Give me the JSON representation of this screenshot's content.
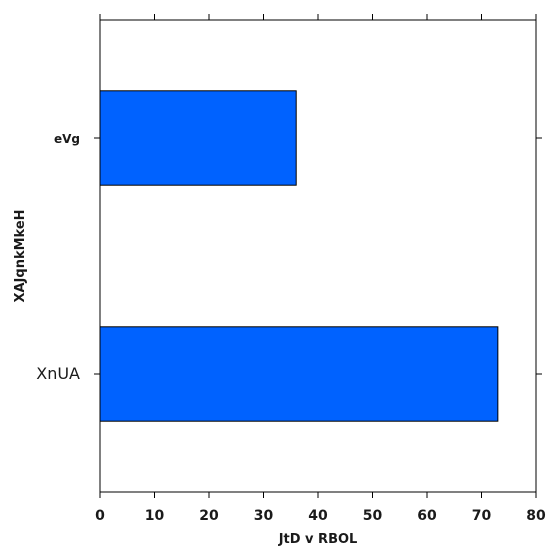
{
  "chart_data": {
    "type": "bar",
    "orientation": "horizontal",
    "categories": [
      "XnUA",
      "eVg"
    ],
    "values": [
      73,
      36
    ],
    "title": "",
    "xlabel": "JtD  v RBOL",
    "ylabel": "XAJqnkMkeH",
    "xlim": [
      0,
      80
    ],
    "xticks": [
      0,
      10,
      20,
      30,
      40,
      50,
      60,
      70,
      80
    ],
    "grid": false,
    "bar_color": "#0062ff"
  }
}
